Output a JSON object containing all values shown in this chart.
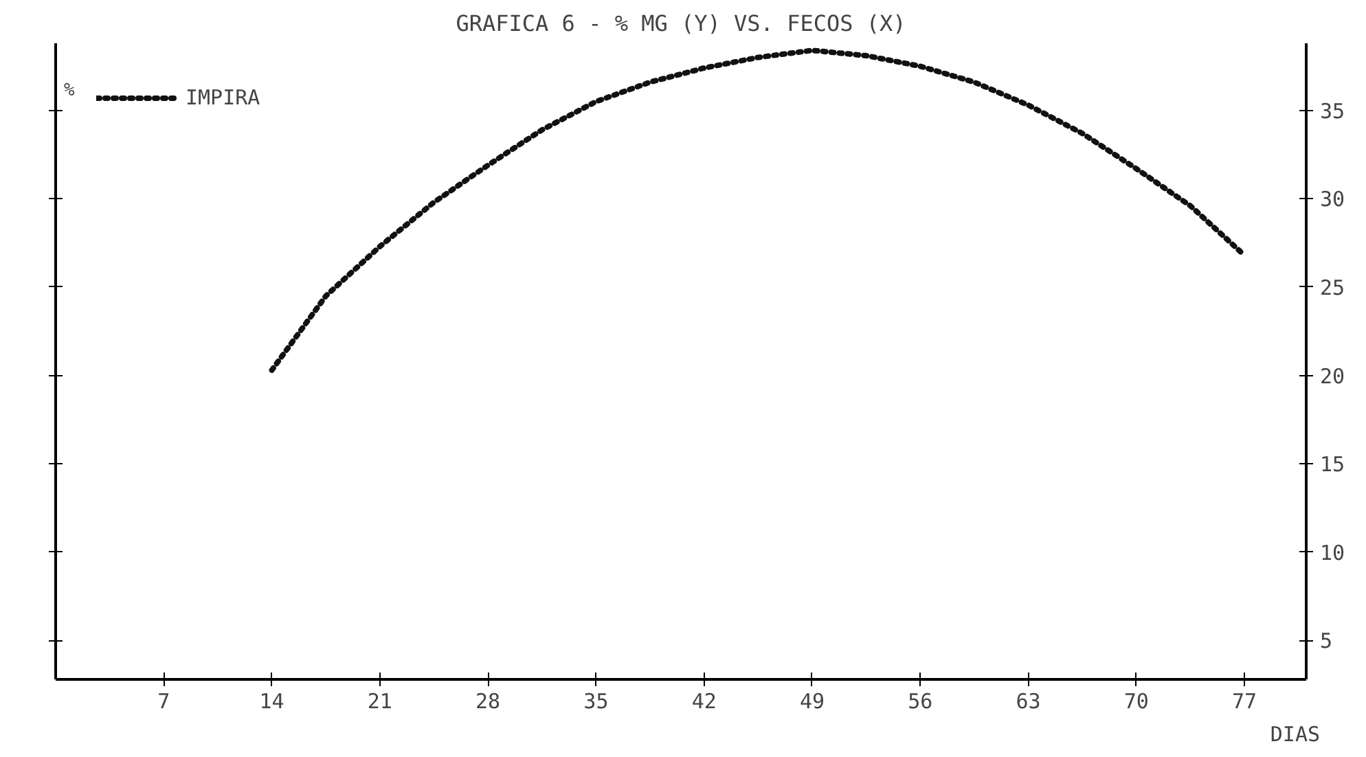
{
  "chart_data": {
    "type": "line",
    "title": "GRAFICA 6 - % MG (Y) VS. FECOS (X)",
    "xlabel": "DIAS",
    "ylabel": "%",
    "x": [
      14,
      17.5,
      21,
      24.5,
      28,
      31.5,
      35,
      38.5,
      42,
      45.5,
      49,
      52.5,
      56,
      59.5,
      63,
      66.5,
      70,
      73.5,
      77
    ],
    "series": [
      {
        "name": "IMPIRA",
        "color": "#111111",
        "values": [
          20.3,
          24.5,
          27.3,
          29.8,
          31.9,
          33.9,
          35.5,
          36.6,
          37.4,
          38.0,
          38.4,
          38.1,
          37.5,
          36.6,
          35.3,
          33.7,
          31.7,
          29.6,
          26.8
        ]
      }
    ],
    "xlim": [
      0,
      81
    ],
    "xticks": [
      7,
      14,
      21,
      28,
      35,
      42,
      49,
      56,
      63,
      70,
      77
    ],
    "ylim": [
      2.8,
      38.8
    ],
    "yticks": [
      5,
      10,
      15,
      20,
      25,
      30,
      35
    ],
    "grid": false,
    "legend": "top left",
    "line_style": "dotted",
    "marker": "none"
  }
}
